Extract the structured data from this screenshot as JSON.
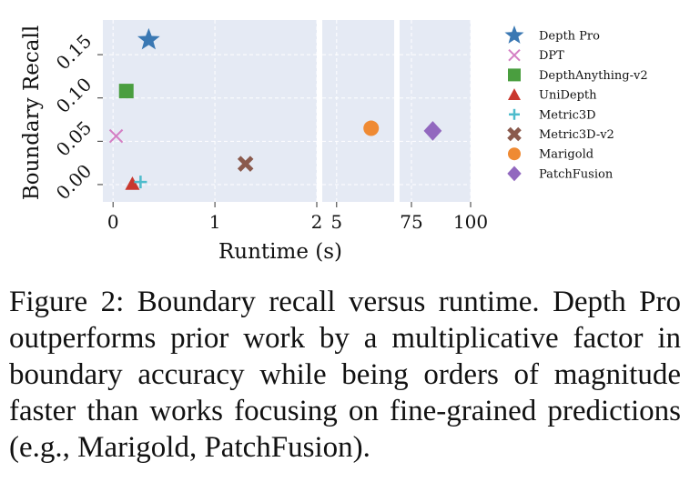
{
  "chart_data": {
    "type": "scatter",
    "xlabel": "Runtime (s)",
    "ylabel": "Boundary Recall",
    "x_axis_segments": [
      {
        "xlim": [
          -0.1,
          2
        ],
        "ticks": [
          "0",
          "1",
          "2"
        ]
      },
      {
        "xlim": [
          4.5,
          7
        ],
        "ticks": [
          "5"
        ]
      },
      {
        "xlim": [
          70,
          100
        ],
        "ticks": [
          "75",
          "100"
        ]
      }
    ],
    "ylim": [
      -0.02,
      0.19
    ],
    "y_ticks": [
      "0.00",
      "0.05",
      "0.10",
      "0.15"
    ],
    "grid": true,
    "legend_position": "right",
    "series": [
      {
        "name": "Depth Pro",
        "marker": "star",
        "color": "#3a78b3",
        "x": 0.35,
        "y": 0.167
      },
      {
        "name": "DPT",
        "marker": "x",
        "color": "#d47fc4",
        "x": 0.03,
        "y": 0.056
      },
      {
        "name": "DepthAnything-v2",
        "marker": "square",
        "color": "#4a9e3f",
        "x": 0.13,
        "y": 0.108
      },
      {
        "name": "UniDepth",
        "marker": "triangle",
        "color": "#c9382e",
        "x": 0.19,
        "y": 0.001
      },
      {
        "name": "Metric3D",
        "marker": "plus",
        "color": "#4ebccc",
        "x": 0.27,
        "y": 0.003
      },
      {
        "name": "Metric3D-v2",
        "marker": "x-thick",
        "color": "#8a5a4d",
        "x": 1.3,
        "y": 0.024
      },
      {
        "name": "Marigold",
        "marker": "circle",
        "color": "#ef8a33",
        "x": 6.2,
        "y": 0.065
      },
      {
        "name": "PatchFusion",
        "marker": "diamond",
        "color": "#9268bf",
        "x": 84,
        "y": 0.062
      }
    ]
  },
  "caption": "Figure 2: Boundary recall versus runtime. Depth Pro outperforms prior work by a multiplicative factor in boundary accuracy while being orders of magnitude faster than works focusing on fine-grained predictions (e.g., Marigold, PatchFusion)."
}
